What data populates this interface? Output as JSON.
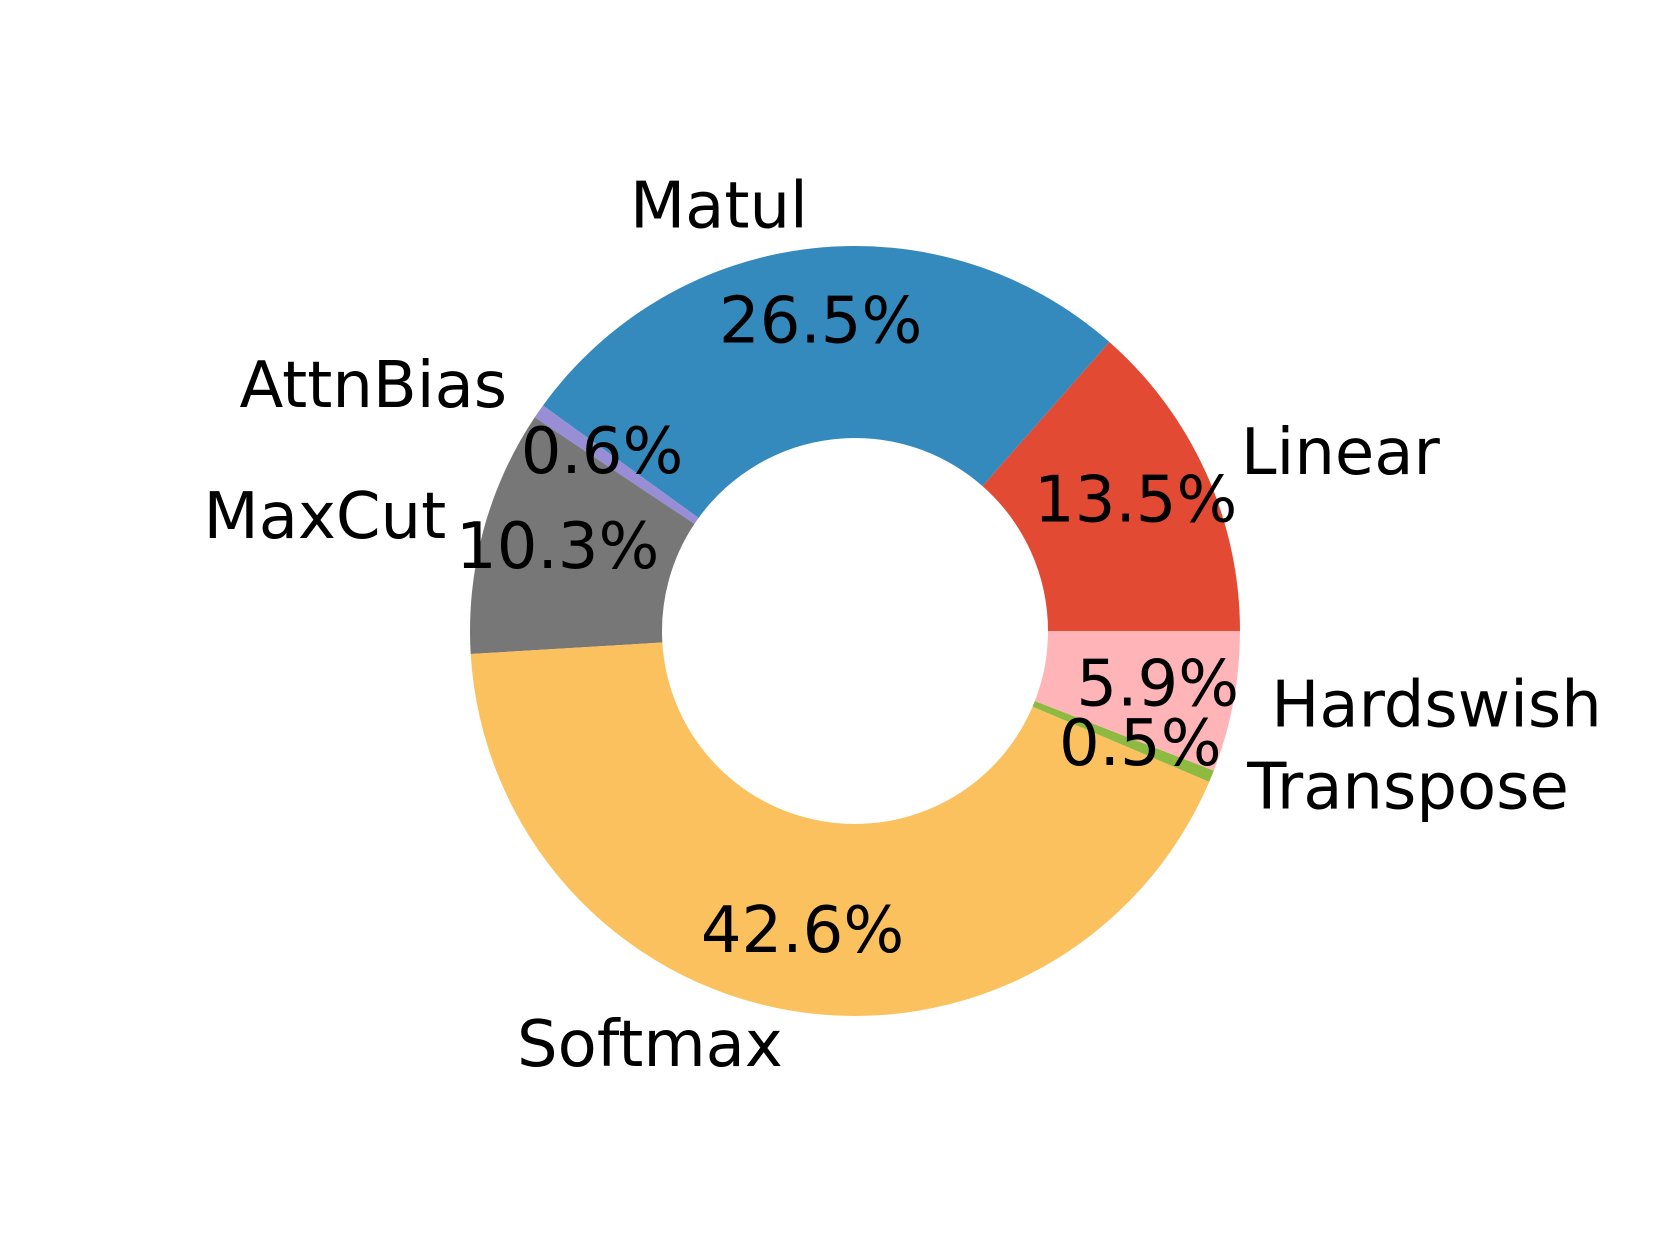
{
  "chart_data": {
    "type": "pie",
    "categories": [
      "Linear",
      "Matul",
      "AttnBias",
      "MaxCut",
      "Softmax",
      "Transpose",
      "Hardswish"
    ],
    "values": [
      13.5,
      26.5,
      0.6,
      10.3,
      42.6,
      0.5,
      5.9
    ],
    "value_labels": [
      "13.5%",
      "26.5%",
      "0.6%",
      "10.3%",
      "42.6%",
      "0.5%",
      "5.9%"
    ],
    "colors": [
      "#E24A33",
      "#348ABD",
      "#988ED5",
      "#777777",
      "#FBC15E",
      "#8EBA42",
      "#FFB5B8"
    ],
    "donut": true
  }
}
